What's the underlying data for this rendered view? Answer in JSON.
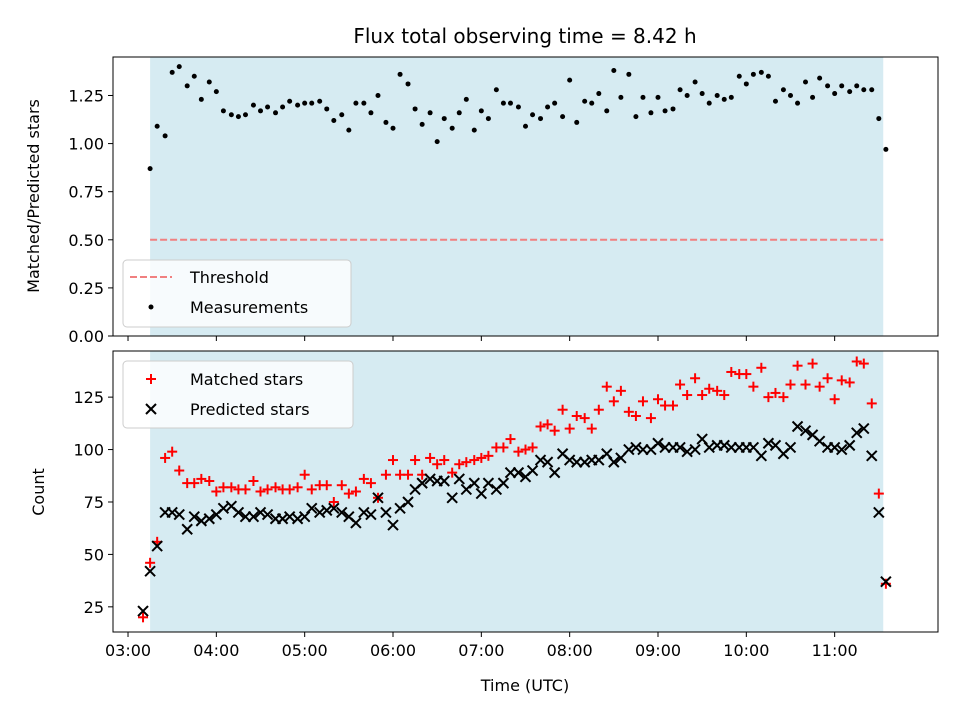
{
  "chart_data": [
    {
      "type": "scatter",
      "title": "Flux total observing time = 8.42 h",
      "ylabel": "Matched/Predicted stars",
      "xlabel": "",
      "x_axis": "time (UTC), decimal hours",
      "xlim": [
        2.83,
        12.17
      ],
      "ylim": [
        0,
        1.45
      ],
      "x_ticks": [
        3,
        4,
        5,
        6,
        7,
        8,
        9,
        10,
        11
      ],
      "x_tick_labels": [
        "03:00",
        "04:00",
        "05:00",
        "06:00",
        "07:00",
        "08:00",
        "09:00",
        "10:00",
        "11:00"
      ],
      "y_ticks": [
        0,
        0.25,
        0.5,
        0.75,
        1.0,
        1.25
      ],
      "y_tick_labels": [
        "0.00",
        "0.25",
        "0.50",
        "0.75",
        "1.00",
        "1.25"
      ],
      "shaded_span": [
        3.25,
        11.55
      ],
      "threshold": 0.5,
      "legend_position": "lower-left",
      "legend": [
        "Threshold",
        "Measurements"
      ],
      "series": [
        {
          "name": "Measurements",
          "x": [
            3.25,
            3.33,
            3.42,
            3.5,
            3.58,
            3.67,
            3.75,
            3.83,
            3.92,
            4.0,
            4.08,
            4.17,
            4.25,
            4.33,
            4.42,
            4.5,
            4.58,
            4.67,
            4.75,
            4.83,
            4.92,
            5.0,
            5.08,
            5.17,
            5.25,
            5.33,
            5.42,
            5.5,
            5.58,
            5.67,
            5.75,
            5.83,
            5.92,
            6.0,
            6.08,
            6.17,
            6.25,
            6.33,
            6.42,
            6.5,
            6.58,
            6.67,
            6.75,
            6.83,
            6.92,
            7.0,
            7.08,
            7.17,
            7.25,
            7.33,
            7.42,
            7.5,
            7.58,
            7.67,
            7.75,
            7.83,
            7.92,
            8.0,
            8.08,
            8.17,
            8.25,
            8.33,
            8.42,
            8.5,
            8.58,
            8.67,
            8.75,
            8.83,
            8.92,
            9.0,
            9.08,
            9.17,
            9.25,
            9.33,
            9.42,
            9.5,
            9.58,
            9.67,
            9.75,
            9.83,
            9.92,
            10.0,
            10.08,
            10.17,
            10.25,
            10.33,
            10.42,
            10.5,
            10.58,
            10.67,
            10.75,
            10.83,
            10.92,
            11.0,
            11.08,
            11.17,
            11.25,
            11.33,
            11.42,
            11.5,
            11.58
          ],
          "y": [
            0.87,
            1.09,
            1.04,
            1.37,
            1.4,
            1.3,
            1.35,
            1.23,
            1.32,
            1.27,
            1.17,
            1.15,
            1.14,
            1.15,
            1.2,
            1.17,
            1.19,
            1.16,
            1.19,
            1.22,
            1.2,
            1.21,
            1.21,
            1.22,
            1.18,
            1.12,
            1.15,
            1.07,
            1.21,
            1.21,
            1.16,
            1.25,
            1.11,
            1.08,
            1.36,
            1.31,
            1.18,
            1.1,
            1.16,
            1.01,
            1.13,
            1.08,
            1.16,
            1.23,
            1.07,
            1.17,
            1.13,
            1.28,
            1.21,
            1.21,
            1.19,
            1.09,
            1.15,
            1.13,
            1.19,
            1.21,
            1.14,
            1.33,
            1.11,
            1.22,
            1.21,
            1.26,
            1.17,
            1.38,
            1.24,
            1.36,
            1.14,
            1.24,
            1.16,
            1.24,
            1.17,
            1.18,
            1.28,
            1.25,
            1.32,
            1.26,
            1.21,
            1.25,
            1.23,
            1.24,
            1.35,
            1.31,
            1.36,
            1.37,
            1.35,
            1.22,
            1.28,
            1.25,
            1.21,
            1.32,
            1.24,
            1.34,
            1.3,
            1.26,
            1.3,
            1.27,
            1.3,
            1.28,
            1.28,
            1.13,
            0.97
          ]
        }
      ]
    },
    {
      "type": "scatter",
      "title": "",
      "xlabel": "Time (UTC)",
      "ylabel": "Count",
      "xlim": [
        2.83,
        12.17
      ],
      "ylim": [
        13,
        147
      ],
      "x_ticks": [
        3,
        4,
        5,
        6,
        7,
        8,
        9,
        10,
        11
      ],
      "x_tick_labels": [
        "03:00",
        "04:00",
        "05:00",
        "06:00",
        "07:00",
        "08:00",
        "09:00",
        "10:00",
        "11:00"
      ],
      "y_ticks": [
        25,
        50,
        75,
        100,
        125
      ],
      "y_tick_labels": [
        "25",
        "50",
        "75",
        "100",
        "125"
      ],
      "shaded_span": [
        3.25,
        11.55
      ],
      "legend_position": "upper-left",
      "legend": [
        "Matched stars",
        "Predicted stars"
      ],
      "series": [
        {
          "name": "Matched stars",
          "x": [
            3.17,
            3.25,
            3.33,
            3.42,
            3.5,
            3.58,
            3.67,
            3.75,
            3.83,
            3.92,
            4.0,
            4.08,
            4.17,
            4.25,
            4.33,
            4.42,
            4.5,
            4.58,
            4.67,
            4.75,
            4.83,
            4.92,
            5.0,
            5.08,
            5.17,
            5.25,
            5.33,
            5.42,
            5.5,
            5.58,
            5.67,
            5.75,
            5.83,
            5.92,
            6.0,
            6.08,
            6.17,
            6.25,
            6.33,
            6.42,
            6.5,
            6.58,
            6.67,
            6.75,
            6.83,
            6.92,
            7.0,
            7.08,
            7.17,
            7.25,
            7.33,
            7.42,
            7.5,
            7.58,
            7.67,
            7.75,
            7.83,
            7.92,
            8.0,
            8.08,
            8.17,
            8.25,
            8.33,
            8.42,
            8.5,
            8.58,
            8.67,
            8.75,
            8.83,
            8.92,
            9.0,
            9.08,
            9.17,
            9.25,
            9.33,
            9.42,
            9.5,
            9.58,
            9.67,
            9.75,
            9.83,
            9.92,
            10.0,
            10.08,
            10.17,
            10.25,
            10.33,
            10.42,
            10.5,
            10.58,
            10.67,
            10.75,
            10.83,
            10.92,
            11.0,
            11.08,
            11.17,
            11.25,
            11.33,
            11.42,
            11.5,
            11.58
          ],
          "y": [
            20,
            46,
            56,
            96,
            99,
            90,
            84,
            84,
            86,
            85,
            80,
            82,
            82,
            81,
            81,
            85,
            80,
            81,
            82,
            81,
            81,
            82,
            88,
            81,
            83,
            83,
            75,
            83,
            79,
            80,
            86,
            84,
            77,
            88,
            95,
            88,
            88,
            95,
            88,
            96,
            93,
            95,
            89,
            93,
            94,
            95,
            96,
            97,
            101,
            101,
            105,
            99,
            100,
            101,
            111,
            112,
            109,
            119,
            110,
            116,
            115,
            110,
            119,
            130,
            123,
            128,
            118,
            116,
            123,
            115,
            124,
            121,
            121,
            131,
            126,
            134,
            126,
            129,
            128,
            126,
            137,
            136,
            136,
            130,
            139,
            125,
            127,
            125,
            131,
            140,
            131,
            141,
            130,
            134,
            124,
            133,
            132,
            142,
            141,
            122,
            79,
            36
          ]
        },
        {
          "name": "Predicted stars",
          "x": [
            3.17,
            3.25,
            3.33,
            3.42,
            3.5,
            3.58,
            3.67,
            3.75,
            3.83,
            3.92,
            4.0,
            4.08,
            4.17,
            4.25,
            4.33,
            4.42,
            4.5,
            4.58,
            4.67,
            4.75,
            4.83,
            4.92,
            5.0,
            5.08,
            5.17,
            5.25,
            5.33,
            5.42,
            5.5,
            5.58,
            5.67,
            5.75,
            5.83,
            5.92,
            6.0,
            6.08,
            6.17,
            6.25,
            6.33,
            6.42,
            6.5,
            6.58,
            6.67,
            6.75,
            6.83,
            6.92,
            7.0,
            7.08,
            7.17,
            7.25,
            7.33,
            7.42,
            7.5,
            7.58,
            7.67,
            7.75,
            7.83,
            7.92,
            8.0,
            8.08,
            8.17,
            8.25,
            8.33,
            8.42,
            8.5,
            8.58,
            8.67,
            8.75,
            8.83,
            8.92,
            9.0,
            9.08,
            9.17,
            9.25,
            9.33,
            9.42,
            9.5,
            9.58,
            9.67,
            9.75,
            9.83,
            9.92,
            10.0,
            10.08,
            10.17,
            10.25,
            10.33,
            10.42,
            10.5,
            10.58,
            10.67,
            10.75,
            10.83,
            10.92,
            11.0,
            11.08,
            11.17,
            11.25,
            11.33,
            11.42,
            11.5,
            11.58
          ],
          "y": [
            23,
            42,
            54,
            70,
            70,
            69,
            62,
            68,
            66,
            67,
            69,
            72,
            73,
            70,
            68,
            68,
            70,
            69,
            67,
            67,
            68,
            67,
            68,
            72,
            70,
            71,
            72,
            70,
            68,
            65,
            70,
            69,
            77,
            70,
            64,
            72,
            75,
            81,
            84,
            86,
            85,
            85,
            77,
            86,
            81,
            84,
            79,
            84,
            81,
            84,
            89,
            89,
            87,
            90,
            95,
            94,
            89,
            98,
            95,
            94,
            94,
            95,
            95,
            98,
            94,
            96,
            100,
            101,
            100,
            100,
            103,
            101,
            101,
            101,
            99,
            100,
            105,
            101,
            102,
            102,
            101,
            101,
            101,
            101,
            97,
            103,
            102,
            98,
            101,
            111,
            109,
            107,
            104,
            101,
            101,
            100,
            102,
            108,
            110,
            97,
            70,
            37
          ]
        }
      ]
    }
  ]
}
